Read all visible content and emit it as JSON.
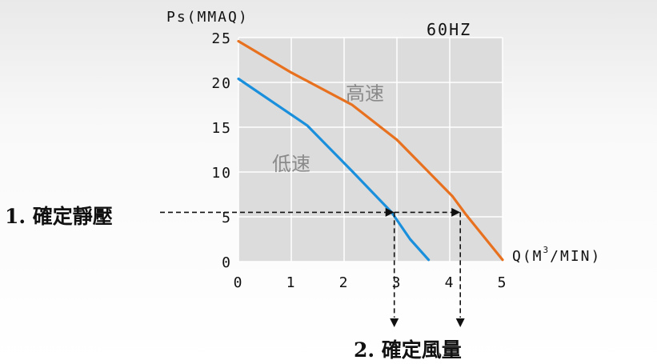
{
  "chart_data": {
    "type": "line",
    "ylabel": "Ps(MMAQ)",
    "xlabel_prefix": "Q(M",
    "xlabel_sup": "3",
    "xlabel_suffix": "/MIN)",
    "frequency": "60HZ",
    "xlim": [
      0,
      5
    ],
    "ylim": [
      0,
      25
    ],
    "x_ticks": [
      "0",
      "1",
      "2",
      "3",
      "4",
      "5"
    ],
    "y_ticks": [
      "0",
      "5",
      "10",
      "15",
      "20",
      "25"
    ],
    "grid": true,
    "series": [
      {
        "name": "高速",
        "color": "#e8711f",
        "points": [
          [
            0,
            24.6
          ],
          [
            1,
            21.1
          ],
          [
            2.15,
            17.5
          ],
          [
            3,
            13.6
          ],
          [
            3.6,
            10
          ],
          [
            4.05,
            7.3
          ],
          [
            4.3,
            5.3
          ],
          [
            5,
            0.2
          ]
        ]
      },
      {
        "name": "低速",
        "color": "#1a8fdc",
        "points": [
          [
            0,
            20.4
          ],
          [
            1.3,
            15.2
          ],
          [
            2.15,
            10.1
          ],
          [
            2.9,
            5.5
          ],
          [
            3.25,
            2.5
          ],
          [
            3.6,
            0.2
          ]
        ]
      }
    ],
    "annotations": {
      "step1": "1. 確定靜壓",
      "step2": "2. 確定風量",
      "static_pressure": 5.5,
      "airflow_low": 2.95,
      "airflow_high": 4.2
    }
  }
}
